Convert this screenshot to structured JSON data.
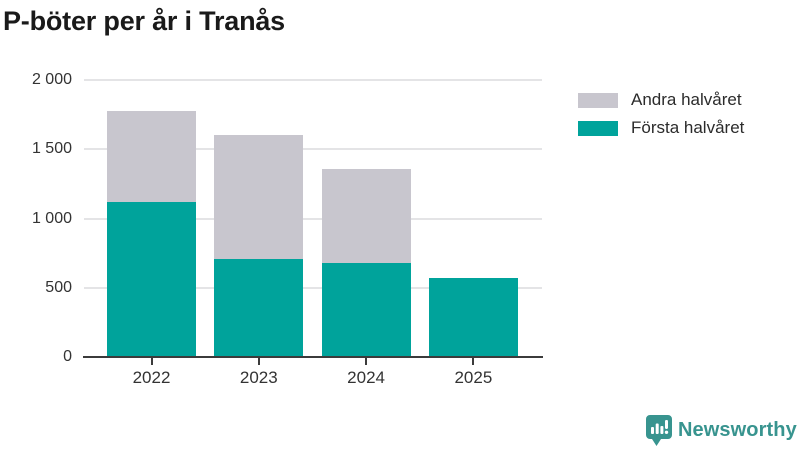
{
  "title": "P-böter per år i Tranås",
  "chart_data": {
    "type": "bar",
    "stacked": true,
    "title": "P-böter per år i Tranås",
    "categories": [
      "2022",
      "2023",
      "2024",
      "2025"
    ],
    "series": [
      {
        "name": "Första halvåret",
        "color": "#00A39B",
        "values": [
          1120,
          705,
          680,
          570
        ]
      },
      {
        "name": "Andra halvåret",
        "color": "#C8C6CE",
        "values": [
          655,
          895,
          680,
          0
        ]
      }
    ],
    "xlabel": "",
    "ylabel": "",
    "ylim": [
      0,
      2000
    ],
    "yticks": [
      0,
      500,
      1000,
      1500,
      2000
    ],
    "ytick_labels": [
      "0",
      "500",
      "1 000",
      "1 500",
      "2 000"
    ],
    "grid": true,
    "legend_position": "right"
  },
  "legend": {
    "items": [
      {
        "label": "Andra halvåret",
        "color": "#C8C6CE"
      },
      {
        "label": "Första halvåret",
        "color": "#00A39B"
      }
    ]
  },
  "branding": {
    "logo_text": "Newsworthy",
    "logo_color": "#38948F"
  }
}
